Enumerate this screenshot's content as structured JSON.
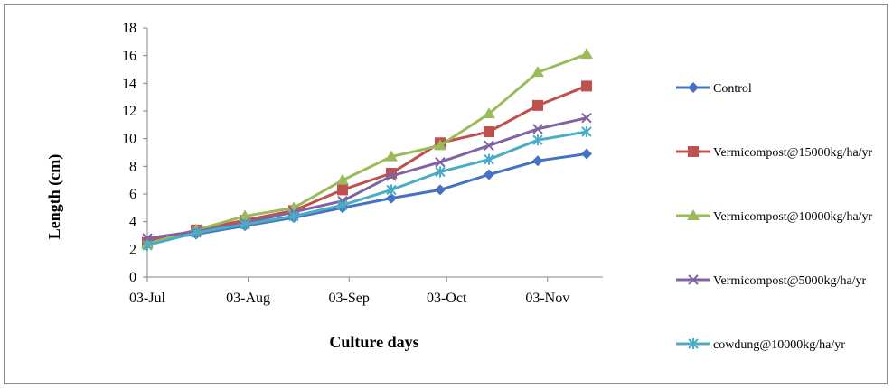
{
  "chart_data": {
    "type": "line",
    "title": "",
    "xlabel": "Culture days",
    "ylabel": "Length (cm)",
    "ylim": [
      0,
      18
    ],
    "yticks": [
      0,
      2,
      4,
      6,
      8,
      10,
      12,
      14,
      16,
      18
    ],
    "x_tick_labels": [
      "03-Jul",
      "03-Aug",
      "03-Sep",
      "03-Oct",
      "03-Nov"
    ],
    "x_tick_days": [
      "2013-07-03",
      "2013-08-03",
      "2013-09-03",
      "2013-10-03",
      "2013-11-03"
    ],
    "x": [
      "2013-07-03",
      "2013-07-18",
      "2013-08-02",
      "2013-08-17",
      "2013-09-01",
      "2013-09-16",
      "2013-10-01",
      "2013-10-16",
      "2013-10-31",
      "2013-11-15"
    ],
    "grid": false,
    "legend_position": "right",
    "series": [
      {
        "name": "Control",
        "color": "#4572c4",
        "marker": "diamond",
        "values": [
          2.6,
          3.1,
          3.7,
          4.3,
          5.0,
          5.7,
          6.3,
          7.4,
          8.4,
          8.9
        ]
      },
      {
        "name": "Vermicompost@15000kg/ha/yr",
        "color": "#c0504d",
        "marker": "square",
        "values": [
          2.5,
          3.4,
          4.1,
          4.8,
          6.3,
          7.5,
          9.7,
          10.5,
          12.4,
          13.8
        ]
      },
      {
        "name": "Vermicompost@10000kg/ha/yr",
        "color": "#9bbb59",
        "marker": "triangle",
        "values": [
          2.4,
          3.4,
          4.4,
          5.0,
          7.0,
          8.7,
          9.5,
          11.8,
          14.8,
          16.1
        ]
      },
      {
        "name": "Vermicompost@5000kg/ha/yr",
        "color": "#8064a2",
        "marker": "x",
        "values": [
          2.8,
          3.3,
          3.9,
          4.7,
          5.5,
          7.3,
          8.3,
          9.5,
          10.7,
          11.5
        ]
      },
      {
        "name": "cowdung@10000kg/ha/yr",
        "color": "#4bacc6",
        "marker": "star",
        "values": [
          2.3,
          3.2,
          3.8,
          4.4,
          5.2,
          6.3,
          7.6,
          8.5,
          9.9,
          10.5
        ]
      }
    ]
  }
}
